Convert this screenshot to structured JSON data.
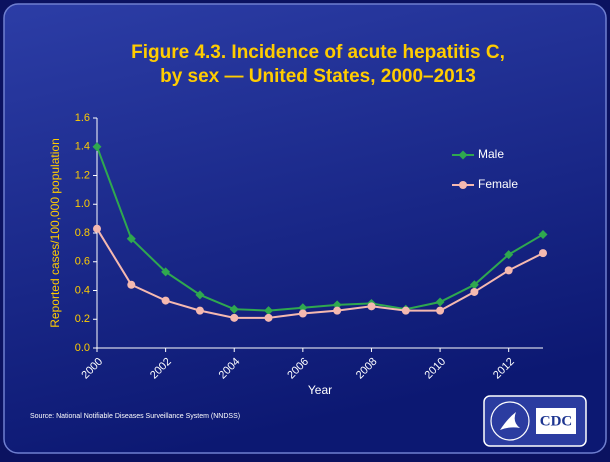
{
  "chart_data": {
    "type": "line",
    "title": [
      "Figure 4.3. Incidence of acute hepatitis C,",
      "by sex — United States, 2000–2013"
    ],
    "x_label": "Year",
    "y_label": "Reported cases/100,000 population",
    "x": [
      2000,
      2001,
      2002,
      2003,
      2004,
      2005,
      2006,
      2007,
      2008,
      2009,
      2010,
      2011,
      2012,
      2013
    ],
    "xlim": [
      2000,
      2013
    ],
    "xticks": [
      2000,
      2002,
      2004,
      2006,
      2008,
      2010,
      2012
    ],
    "ylim": [
      0,
      1.6
    ],
    "yticks": [
      {
        "value": 0,
        "label": "0.0"
      },
      0.2,
      0.4,
      0.6,
      0.8,
      {
        "value": 1,
        "label": "1.0"
      },
      1.2,
      1.4,
      1.6
    ],
    "series": [
      {
        "name": "Male",
        "color": "#2fa84f",
        "marker": "diamond",
        "values": [
          1.4,
          0.76,
          0.53,
          0.37,
          0.27,
          0.26,
          0.28,
          0.3,
          0.31,
          0.27,
          0.32,
          0.44,
          0.65,
          0.79
        ]
      },
      {
        "name": "Female",
        "color": "#f5b9b0",
        "marker": "circle",
        "values": [
          0.83,
          0.44,
          0.33,
          0.26,
          0.21,
          0.21,
          0.24,
          0.26,
          0.29,
          0.26,
          0.26,
          0.39,
          0.54,
          0.66
        ]
      }
    ],
    "legend": "top-right",
    "source": "Source: National Notifiable Diseases Surveillance System (NNDSS)"
  },
  "logo": "CDC"
}
